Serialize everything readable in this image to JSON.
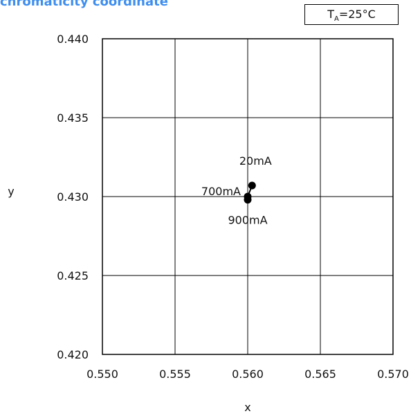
{
  "condition": {
    "prefix": "T",
    "subscript": "A",
    "suffix": "=25°C"
  },
  "chart_data": {
    "type": "scatter",
    "title": "chromaticity coordinate",
    "xlabel": "x",
    "ylabel": "y",
    "xlim": [
      0.55,
      0.57
    ],
    "ylim": [
      0.42,
      0.44
    ],
    "x_ticks": [
      "0.550",
      "0.555",
      "0.560",
      "0.565",
      "0.570"
    ],
    "y_ticks": [
      "0.440",
      "0.435",
      "0.430",
      "0.425",
      "0.420"
    ],
    "grid": true,
    "series": [
      {
        "points": [
          {
            "x": 0.5603,
            "y": 0.4307,
            "label": "20mA"
          },
          {
            "x": 0.56,
            "y": 0.43,
            "label": "700mA"
          },
          {
            "x": 0.56,
            "y": 0.4298,
            "label": "900mA"
          }
        ]
      }
    ]
  }
}
